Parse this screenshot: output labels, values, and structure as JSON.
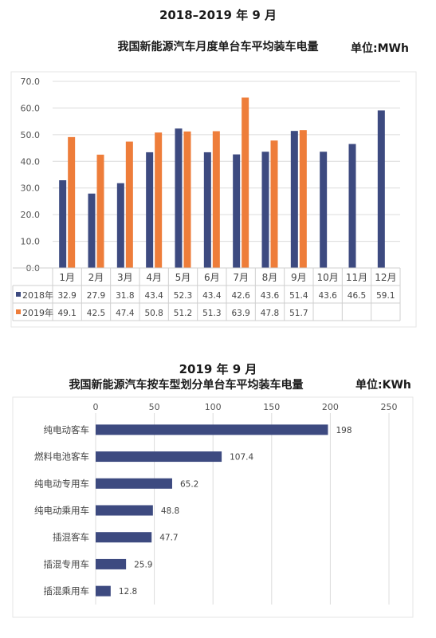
{
  "chart_data": [
    {
      "type": "bar",
      "title": "2018–2019 年 9 月",
      "subtitle": "我国新能源汽车月度单台车平均装车电量",
      "unit": "单位:MWh",
      "categories": [
        "1月",
        "2月",
        "3月",
        "4月",
        "5月",
        "6月",
        "7月",
        "8月",
        "9月",
        "10月",
        "11月",
        "12月"
      ],
      "series": [
        {
          "name": "2018年",
          "color": "#3d4a80",
          "values": [
            32.9,
            27.9,
            31.8,
            43.4,
            52.3,
            43.4,
            42.6,
            43.6,
            51.4,
            43.6,
            46.5,
            59.1
          ],
          "labels": [
            "32.9",
            "27.9",
            "31.8",
            "43.4",
            "52.3",
            "43.4",
            "42.6",
            "43.6",
            "51.4",
            "43.6",
            "46.5",
            "59.1"
          ]
        },
        {
          "name": "2019年",
          "color": "#ee7d3a",
          "values": [
            49.1,
            42.5,
            47.4,
            50.8,
            51.2,
            51.3,
            63.9,
            47.8,
            51.7,
            null,
            null,
            null
          ],
          "labels": [
            "49.1",
            "42.5",
            "47.4",
            "50.8",
            "51.2",
            "51.3",
            "63.9",
            "47.8",
            "51.7",
            "",
            "",
            ""
          ]
        }
      ],
      "yticks": [
        "0.0",
        "10.0",
        "20.0",
        "30.0",
        "40.0",
        "50.0",
        "60.0",
        "70.0"
      ],
      "ylim": [
        0,
        70
      ],
      "grid": true,
      "legend": "data-table"
    },
    {
      "type": "bar",
      "orientation": "horizontal",
      "title": "2019 年 9 月",
      "subtitle": "我国新能源汽车按车型划分单台车平均装车电量",
      "unit": "单位:KWh",
      "categories": [
        "纯电动客车",
        "燃料电池客车",
        "纯电动专用车",
        "纯电动乘用车",
        "插混客车",
        "插混专用车",
        "插混乘用车"
      ],
      "values": [
        198,
        107.4,
        65.2,
        48.8,
        47.7,
        25.9,
        12.8
      ],
      "labels": [
        "198",
        "107.4",
        "65.2",
        "48.8",
        "47.7",
        "25.9",
        "12.8"
      ],
      "xticks": [
        "0",
        "50",
        "100",
        "150",
        "200",
        "250"
      ],
      "xlim": [
        0,
        250
      ],
      "color": "#3d4a80",
      "grid": true
    }
  ]
}
